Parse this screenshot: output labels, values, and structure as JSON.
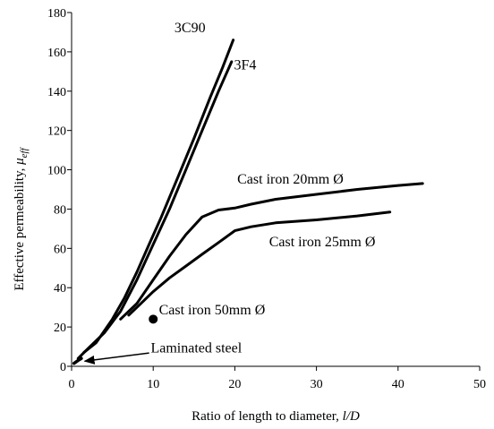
{
  "chart_data": {
    "type": "line",
    "title": "",
    "xlabel": "Ratio of length to diameter, ",
    "xlabel_italic": "l/D",
    "ylabel": "Effective permeability, ",
    "ylabel_symbol": "μ",
    "ylabel_subscript": "eff",
    "xlim": [
      0,
      50
    ],
    "ylim": [
      0,
      180
    ],
    "x_ticks": [
      0,
      10,
      20,
      30,
      40,
      50
    ],
    "y_ticks": [
      0,
      20,
      40,
      60,
      80,
      100,
      120,
      140,
      160,
      180
    ],
    "grid": false,
    "legend": "none",
    "line_color": "#000000",
    "series": [
      {
        "name": "3C90",
        "points": [
          [
            1.5,
            7
          ],
          [
            3,
            12
          ],
          [
            5,
            24
          ],
          [
            6.5,
            35
          ],
          [
            8,
            48
          ],
          [
            9.5,
            62
          ],
          [
            11,
            76
          ],
          [
            13,
            96
          ],
          [
            15,
            116
          ],
          [
            17,
            137
          ],
          [
            18.5,
            152
          ],
          [
            19.8,
            166
          ]
        ]
      },
      {
        "name": "3F4",
        "points": [
          [
            0.8,
            4
          ],
          [
            2,
            9
          ],
          [
            4,
            17
          ],
          [
            6,
            28
          ],
          [
            8,
            44
          ],
          [
            10,
            62
          ],
          [
            12,
            80
          ],
          [
            14,
            100
          ],
          [
            16,
            120
          ],
          [
            18,
            140
          ],
          [
            19.6,
            155
          ]
        ]
      },
      {
        "name": "Cast iron 20mm Ø",
        "points": [
          [
            6,
            24
          ],
          [
            8,
            32
          ],
          [
            10,
            44
          ],
          [
            12,
            56
          ],
          [
            14,
            67
          ],
          [
            16,
            76
          ],
          [
            18,
            79.5
          ],
          [
            20,
            80.5
          ],
          [
            22,
            82.5
          ],
          [
            25,
            85
          ],
          [
            30,
            87.5
          ],
          [
            35,
            90
          ],
          [
            40,
            92
          ],
          [
            43,
            93
          ]
        ]
      },
      {
        "name": "Cast iron 25mm Ø",
        "points": [
          [
            7,
            26
          ],
          [
            8.5,
            32
          ],
          [
            10,
            38
          ],
          [
            12,
            45
          ],
          [
            14,
            51
          ],
          [
            16,
            57
          ],
          [
            18,
            63
          ],
          [
            20,
            69
          ],
          [
            22,
            71
          ],
          [
            25,
            73
          ],
          [
            30,
            74.5
          ],
          [
            35,
            76.5
          ],
          [
            39,
            78.5
          ]
        ]
      },
      {
        "name": "Cast iron 50mm Ø",
        "points": [
          [
            10,
            24
          ]
        ]
      },
      {
        "name": "Laminated steel",
        "points": [
          [
            0.3,
            1.5
          ],
          [
            0.8,
            3
          ],
          [
            1.2,
            4
          ]
        ]
      }
    ],
    "annotations": [
      {
        "text": "3C90",
        "x": 12.6,
        "y": 170
      },
      {
        "text": "3F4",
        "x": 19.9,
        "y": 151
      },
      {
        "text": "Cast iron 20mm Ø",
        "x": 20.3,
        "y": 93
      },
      {
        "text": "Cast iron 25mm Ø",
        "x": 24.2,
        "y": 61
      },
      {
        "text": "Cast iron 50mm Ø",
        "x": 10.7,
        "y": 26.5
      },
      {
        "text": "Laminated steel",
        "x": 9.7,
        "y": 7
      }
    ],
    "arrow": {
      "from": [
        9.5,
        6.8
      ],
      "to": [
        1.6,
        2.6
      ]
    }
  }
}
